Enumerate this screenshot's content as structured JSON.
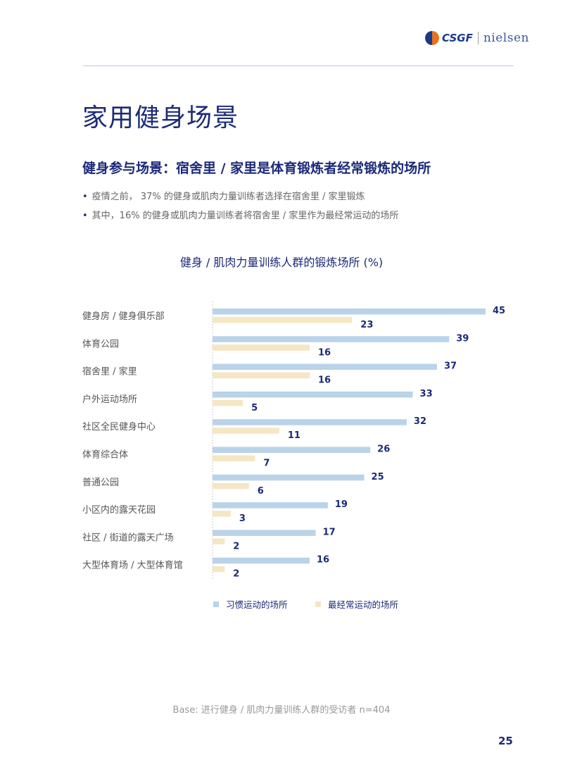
{
  "header": {
    "logo_left": "CSGF",
    "logo_right": "nielsen"
  },
  "title": "家用健身场景",
  "subtitle": "健身参与场景：宿舍里 / 家里是体育锻炼者经常锻炼的场所",
  "bullets": [
    "疫情之前， 37% 的健身或肌肉力量训练者选择在宿舍里 / 家里锻炼",
    "其中，16% 的健身或肌肉力量训练者将宿舍里 / 家里作为最经常运动的场所"
  ],
  "chart_data": {
    "type": "bar",
    "orientation": "horizontal",
    "title": "健身 / 肌肉力量训练人群的锻炼场所 (%)",
    "categories": [
      "健身房 / 健身俱乐部",
      "体育公园",
      "宿舍里 / 家里",
      "户外运动场所",
      "社区全民健身中心",
      "体育综合体",
      "普通公园",
      "小区内的露天花园",
      "社区 / 街道的露天广场",
      "大型体育场 / 大型体育馆"
    ],
    "series": [
      {
        "name": "习惯运动的场所",
        "color": "#b9d3e8",
        "values": [
          45,
          39,
          37,
          33,
          32,
          26,
          25,
          19,
          17,
          16
        ]
      },
      {
        "name": "最经常运动的场所",
        "color": "#f5e6c4",
        "values": [
          23,
          16,
          16,
          5,
          11,
          7,
          6,
          3,
          2,
          2
        ]
      }
    ],
    "xlim": [
      0,
      50
    ],
    "legend": "bottom"
  },
  "footer": {
    "base": "Base: 进行健身 / 肌肉力量训练人群的受访者 n=404",
    "page": "25"
  }
}
